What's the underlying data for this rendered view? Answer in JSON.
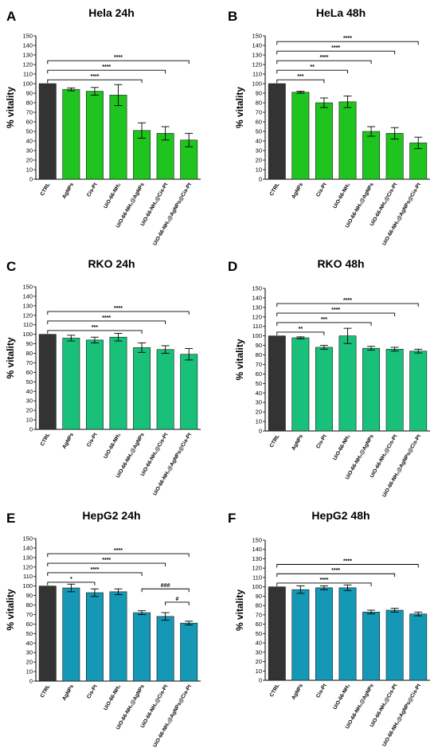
{
  "chart_data": [
    {
      "type": "bar",
      "panel_label": "A",
      "title": "Hela 24h",
      "ylabel": "% vitality",
      "ylim": [
        0,
        150
      ],
      "yticks": [
        0,
        10,
        20,
        30,
        40,
        50,
        60,
        70,
        80,
        90,
        100,
        110,
        120,
        130,
        140,
        150
      ],
      "categories": [
        "CTRL",
        "AgNPs",
        "Cis-Pt",
        "UiO-66-NH₂",
        "UiO-66-NH₂@AgNPs",
        "UiO-66-NH₂@Cis-Pt",
        "UiO-66-NH₂@AgNPs@Cis-Pt"
      ],
      "values": [
        100,
        94,
        92,
        88,
        51,
        48,
        41
      ],
      "errors": [
        0,
        1.5,
        4,
        11,
        8,
        7,
        7
      ],
      "colors": [
        "#333333",
        "#1fc41f",
        "#1fc41f",
        "#1fc41f",
        "#1fc41f",
        "#1fc41f",
        "#1fc41f"
      ],
      "significance": [
        {
          "from": 0,
          "to": 4,
          "label": "****"
        },
        {
          "from": 0,
          "to": 5,
          "label": "****"
        },
        {
          "from": 0,
          "to": 6,
          "label": "****"
        }
      ]
    },
    {
      "type": "bar",
      "panel_label": "B",
      "title": "HeLa 48h",
      "ylabel": "% vitality",
      "ylim": [
        0,
        150
      ],
      "yticks": [
        0,
        10,
        20,
        30,
        40,
        50,
        60,
        70,
        80,
        90,
        100,
        110,
        120,
        130,
        140,
        150
      ],
      "categories": [
        "CTRL",
        "AgNPs",
        "Cis-Pt",
        "UiO-66-NH₂",
        "UiO-66-NH₂@AgNPs",
        "UiO-66-NH₂@Cis-Pt",
        "UiO-66-NH₂@AgNPs@Cis-Pt"
      ],
      "values": [
        100,
        91,
        80,
        81,
        50,
        48,
        38
      ],
      "errors": [
        0,
        1,
        5,
        6,
        5,
        6,
        6
      ],
      "colors": [
        "#333333",
        "#1fc41f",
        "#1fc41f",
        "#1fc41f",
        "#1fc41f",
        "#1fc41f",
        "#1fc41f"
      ],
      "significance": [
        {
          "from": 0,
          "to": 2,
          "label": "***"
        },
        {
          "from": 0,
          "to": 3,
          "label": "**"
        },
        {
          "from": 0,
          "to": 4,
          "label": "****"
        },
        {
          "from": 0,
          "to": 5,
          "label": "****"
        },
        {
          "from": 0,
          "to": 6,
          "label": "****"
        }
      ]
    },
    {
      "type": "bar",
      "panel_label": "C",
      "title": "RKO 24h",
      "ylabel": "% vitality",
      "ylim": [
        0,
        150
      ],
      "yticks": [
        0,
        10,
        20,
        30,
        40,
        50,
        60,
        70,
        80,
        90,
        100,
        110,
        120,
        130,
        140,
        150
      ],
      "categories": [
        "CTRL",
        "AgNPs",
        "Cis-Pt",
        "UiO-66-NH₂",
        "UiO-66-NH₂@AgNPs",
        "UiO-66-NH₂@Cis-Pt",
        "UiO-66-NH₂@AgNPs@Cis-Pt"
      ],
      "values": [
        100,
        96,
        94,
        97,
        86,
        84,
        79
      ],
      "errors": [
        0,
        3,
        3,
        4,
        5,
        4,
        6
      ],
      "colors": [
        "#333333",
        "#18c07a",
        "#18c07a",
        "#18c07a",
        "#18c07a",
        "#18c07a",
        "#18c07a"
      ],
      "significance": [
        {
          "from": 0,
          "to": 4,
          "label": "***"
        },
        {
          "from": 0,
          "to": 5,
          "label": "****"
        },
        {
          "from": 0,
          "to": 6,
          "label": "****"
        }
      ]
    },
    {
      "type": "bar",
      "panel_label": "D",
      "title": "RKO 48h",
      "ylabel": "% vitality",
      "ylim": [
        0,
        150
      ],
      "yticks": [
        0,
        10,
        20,
        30,
        40,
        50,
        60,
        70,
        80,
        90,
        100,
        110,
        120,
        130,
        140,
        150
      ],
      "categories": [
        "CTRL",
        "AgNPs",
        "Cis-Pt",
        "UiO-66-NH₂",
        "UiO-66-NH₂@AgNPs",
        "UiO-66-NH₂@Cis-Pt",
        "UiO-66-NH₂@AgNPs@Cis-Pt"
      ],
      "values": [
        100,
        98,
        88,
        100,
        87,
        86,
        84
      ],
      "errors": [
        0,
        1,
        2,
        8,
        2,
        2,
        2
      ],
      "colors": [
        "#333333",
        "#18c07a",
        "#18c07a",
        "#18c07a",
        "#18c07a",
        "#18c07a",
        "#18c07a"
      ],
      "significance": [
        {
          "from": 0,
          "to": 2,
          "label": "**"
        },
        {
          "from": 0,
          "to": 4,
          "label": "***"
        },
        {
          "from": 0,
          "to": 5,
          "label": "****"
        },
        {
          "from": 0,
          "to": 6,
          "label": "****"
        }
      ]
    },
    {
      "type": "bar",
      "panel_label": "E",
      "title": "HepG2 24h",
      "ylabel": "% vitality",
      "ylim": [
        0,
        150
      ],
      "yticks": [
        0,
        10,
        20,
        30,
        40,
        50,
        60,
        70,
        80,
        90,
        100,
        110,
        120,
        130,
        140,
        150
      ],
      "categories": [
        "CTRL",
        "AgNPs",
        "Cis-Pt",
        "UiO-66-NH₂",
        "UiO-66-NH₂@AgNPs",
        "UiO-66-NH₂@Cis-Pt",
        "UiO-66-NH₂@AgNPs@Cis-Pt"
      ],
      "values": [
        100,
        98,
        93,
        94,
        72,
        68,
        61
      ],
      "errors": [
        0,
        4,
        4,
        3,
        2,
        4,
        2
      ],
      "colors": [
        "#333333",
        "#1498b5",
        "#1498b5",
        "#1498b5",
        "#1498b5",
        "#1498b5",
        "#1498b5"
      ],
      "significance": [
        {
          "from": 0,
          "to": 2,
          "label": "*"
        },
        {
          "from": 0,
          "to": 4,
          "label": "****"
        },
        {
          "from": 0,
          "to": 5,
          "label": "****"
        },
        {
          "from": 0,
          "to": 6,
          "label": "****"
        },
        {
          "from": 5,
          "to": 6,
          "label": "#",
          "level": 83
        },
        {
          "from": 4,
          "to": 6,
          "label": "###",
          "level": 97
        }
      ]
    },
    {
      "type": "bar",
      "panel_label": "F",
      "title": "HepG2 48h",
      "ylabel": "% vitality",
      "ylim": [
        0,
        150
      ],
      "yticks": [
        0,
        10,
        20,
        30,
        40,
        50,
        60,
        70,
        80,
        90,
        100,
        110,
        120,
        130,
        140,
        150
      ],
      "categories": [
        "CTRL",
        "AgNPs",
        "Cis-Pt",
        "UiO-66-NH₂",
        "UiO-66-NH₂@AgNPs",
        "UiO-66-NH₂@Cis-Pt",
        "UiO-66-NH₂@AgNPs@Cis-Pt"
      ],
      "values": [
        100,
        97,
        99,
        99,
        73,
        75,
        71
      ],
      "errors": [
        0,
        4,
        2,
        3,
        2,
        2,
        2
      ],
      "colors": [
        "#333333",
        "#1498b5",
        "#1498b5",
        "#1498b5",
        "#1498b5",
        "#1498b5",
        "#1498b5"
      ],
      "significance": [
        {
          "from": 0,
          "to": 4,
          "label": "****"
        },
        {
          "from": 0,
          "to": 5,
          "label": "****"
        },
        {
          "from": 0,
          "to": 6,
          "label": "****"
        }
      ]
    }
  ]
}
